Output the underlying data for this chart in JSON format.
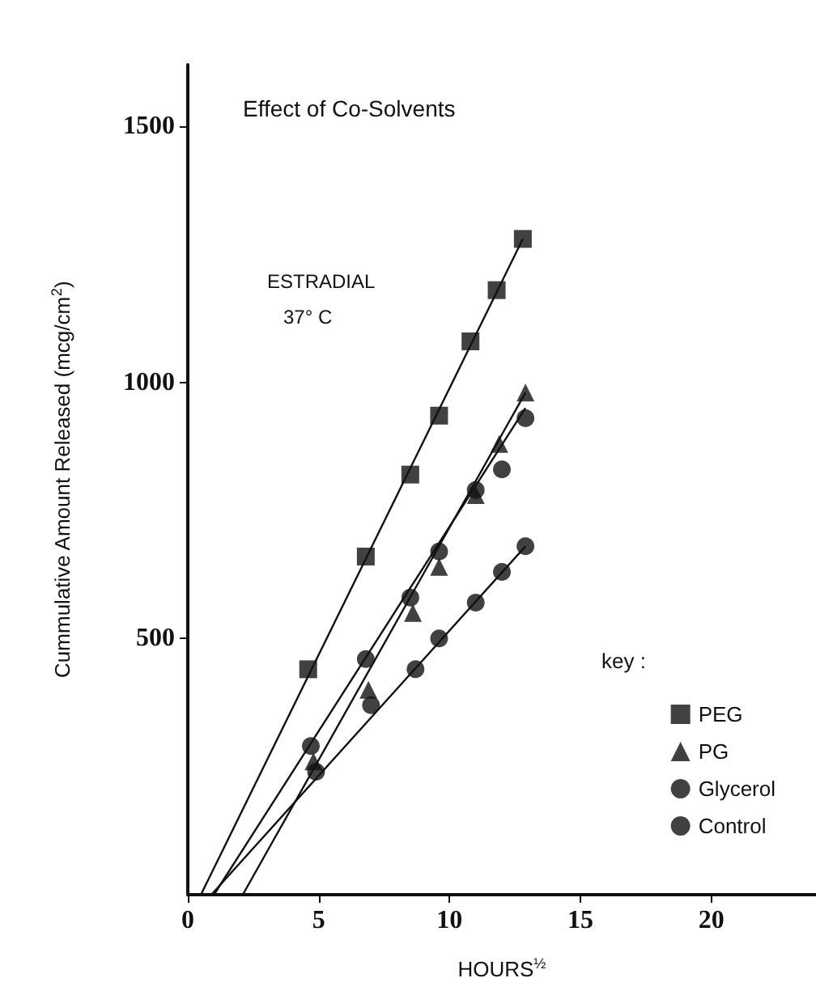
{
  "chart_data": {
    "type": "scatter",
    "title": "Effect of Co-Solvents",
    "xlabel": "HOURS$^{½}$",
    "ylabel": "Cummulative Amount Released (mcg/cm$^{2}$)",
    "legend_title": "key :",
    "annotations": [
      "ESTRADIAL",
      "37° C"
    ],
    "xlim": [
      0,
      24
    ],
    "xticks": [
      0,
      5,
      10,
      15,
      20
    ],
    "ylim": [
      0,
      1620
    ],
    "yticks": [
      500,
      1000,
      1500
    ],
    "grid": false,
    "legend": "right",
    "series": [
      {
        "name": "PEG",
        "color": "#111111",
        "marker": "square",
        "x": [
          4.6,
          6.8,
          8.5,
          9.6,
          10.8,
          11.8,
          12.8
        ],
        "values": [
          440,
          660,
          820,
          935,
          1080,
          1180,
          1280
        ]
      },
      {
        "name": "PG",
        "color": "#111111",
        "marker": "triangle",
        "x": [
          4.8,
          6.9,
          8.6,
          9.6,
          11,
          11.9,
          12.9
        ],
        "values": [
          260,
          400,
          550,
          640,
          780,
          880,
          980
        ]
      },
      {
        "name": "Glycerol",
        "color": "#111111",
        "marker": "circle",
        "x": [
          4.7,
          6.8,
          8.5,
          9.6,
          11,
          12,
          12.9
        ],
        "values": [
          290,
          460,
          580,
          670,
          790,
          830,
          930
        ]
      },
      {
        "name": "Control",
        "color": "#111111",
        "marker": "circle",
        "x": [
          4.9,
          7,
          8.7,
          9.6,
          11,
          12,
          12.9
        ],
        "values": [
          240,
          370,
          440,
          500,
          570,
          630,
          680
        ]
      },
      {
        "type": "line",
        "color": "#111111",
        "marker": "none",
        "x": [
          0.5,
          12.8
        ],
        "values": [
          0,
          1280
        ]
      },
      {
        "type": "line",
        "color": "#111111",
        "marker": "none",
        "x": [
          2.1,
          12.9
        ],
        "values": [
          0,
          980
        ]
      },
      {
        "type": "line",
        "color": "#111111",
        "marker": "none",
        "x": [
          1.0,
          12.9
        ],
        "values": [
          0,
          950
        ]
      },
      {
        "type": "line",
        "color": "#111111",
        "marker": "none",
        "x": [
          0.9,
          12.9
        ],
        "values": [
          0,
          680
        ]
      }
    ]
  }
}
